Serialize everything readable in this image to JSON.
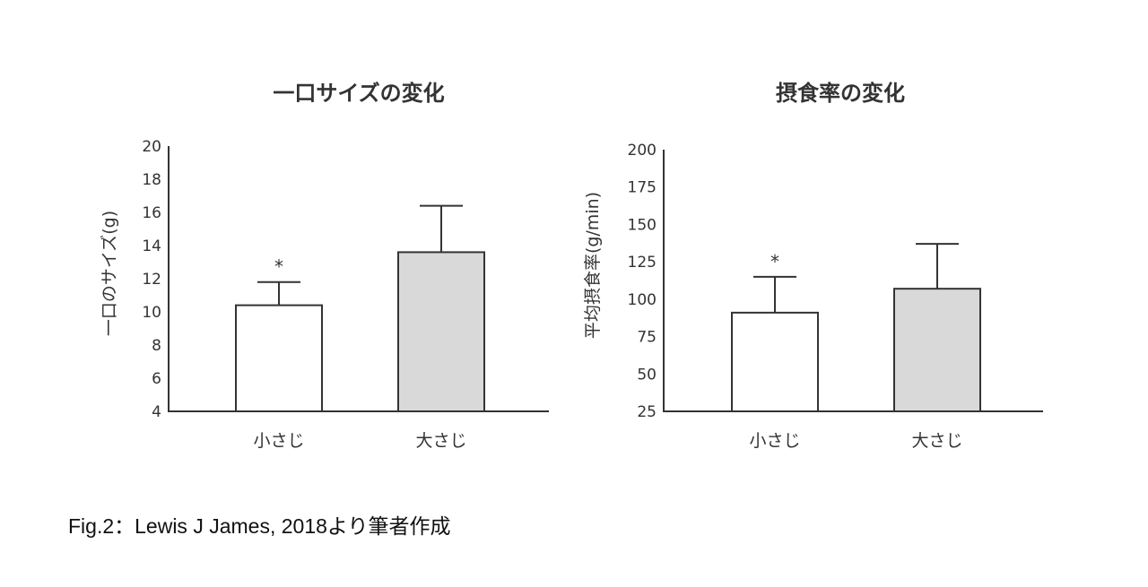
{
  "chart_data": [
    {
      "type": "bar",
      "title": "一口サイズの変化",
      "ylabel": "一口のサイズ(g)",
      "xlabel": "",
      "categories": [
        "小さじ",
        "大さじ"
      ],
      "values": [
        10.4,
        13.6
      ],
      "error_upper": [
        11.8,
        16.4
      ],
      "significance": [
        "*",
        ""
      ],
      "ylim": [
        4,
        20
      ],
      "yticks": [
        4,
        6,
        8,
        10,
        12,
        14,
        16,
        18,
        20
      ],
      "colors": [
        "#ffffff",
        "#d9d9d9"
      ],
      "grid": false
    },
    {
      "type": "bar",
      "title": "摂食率の変化",
      "ylabel": "平均摂食率(g/min)",
      "xlabel": "",
      "categories": [
        "小さじ",
        "大さじ"
      ],
      "values": [
        91,
        107
      ],
      "error_upper": [
        115,
        137
      ],
      "significance": [
        "*",
        ""
      ],
      "ylim": [
        25,
        200
      ],
      "yticks": [
        25,
        50,
        75,
        100,
        125,
        150,
        175,
        200
      ],
      "colors": [
        "#ffffff",
        "#d9d9d9"
      ],
      "grid": false
    }
  ],
  "caption": "Fig.2：Lewis J James, 2018より筆者作成"
}
